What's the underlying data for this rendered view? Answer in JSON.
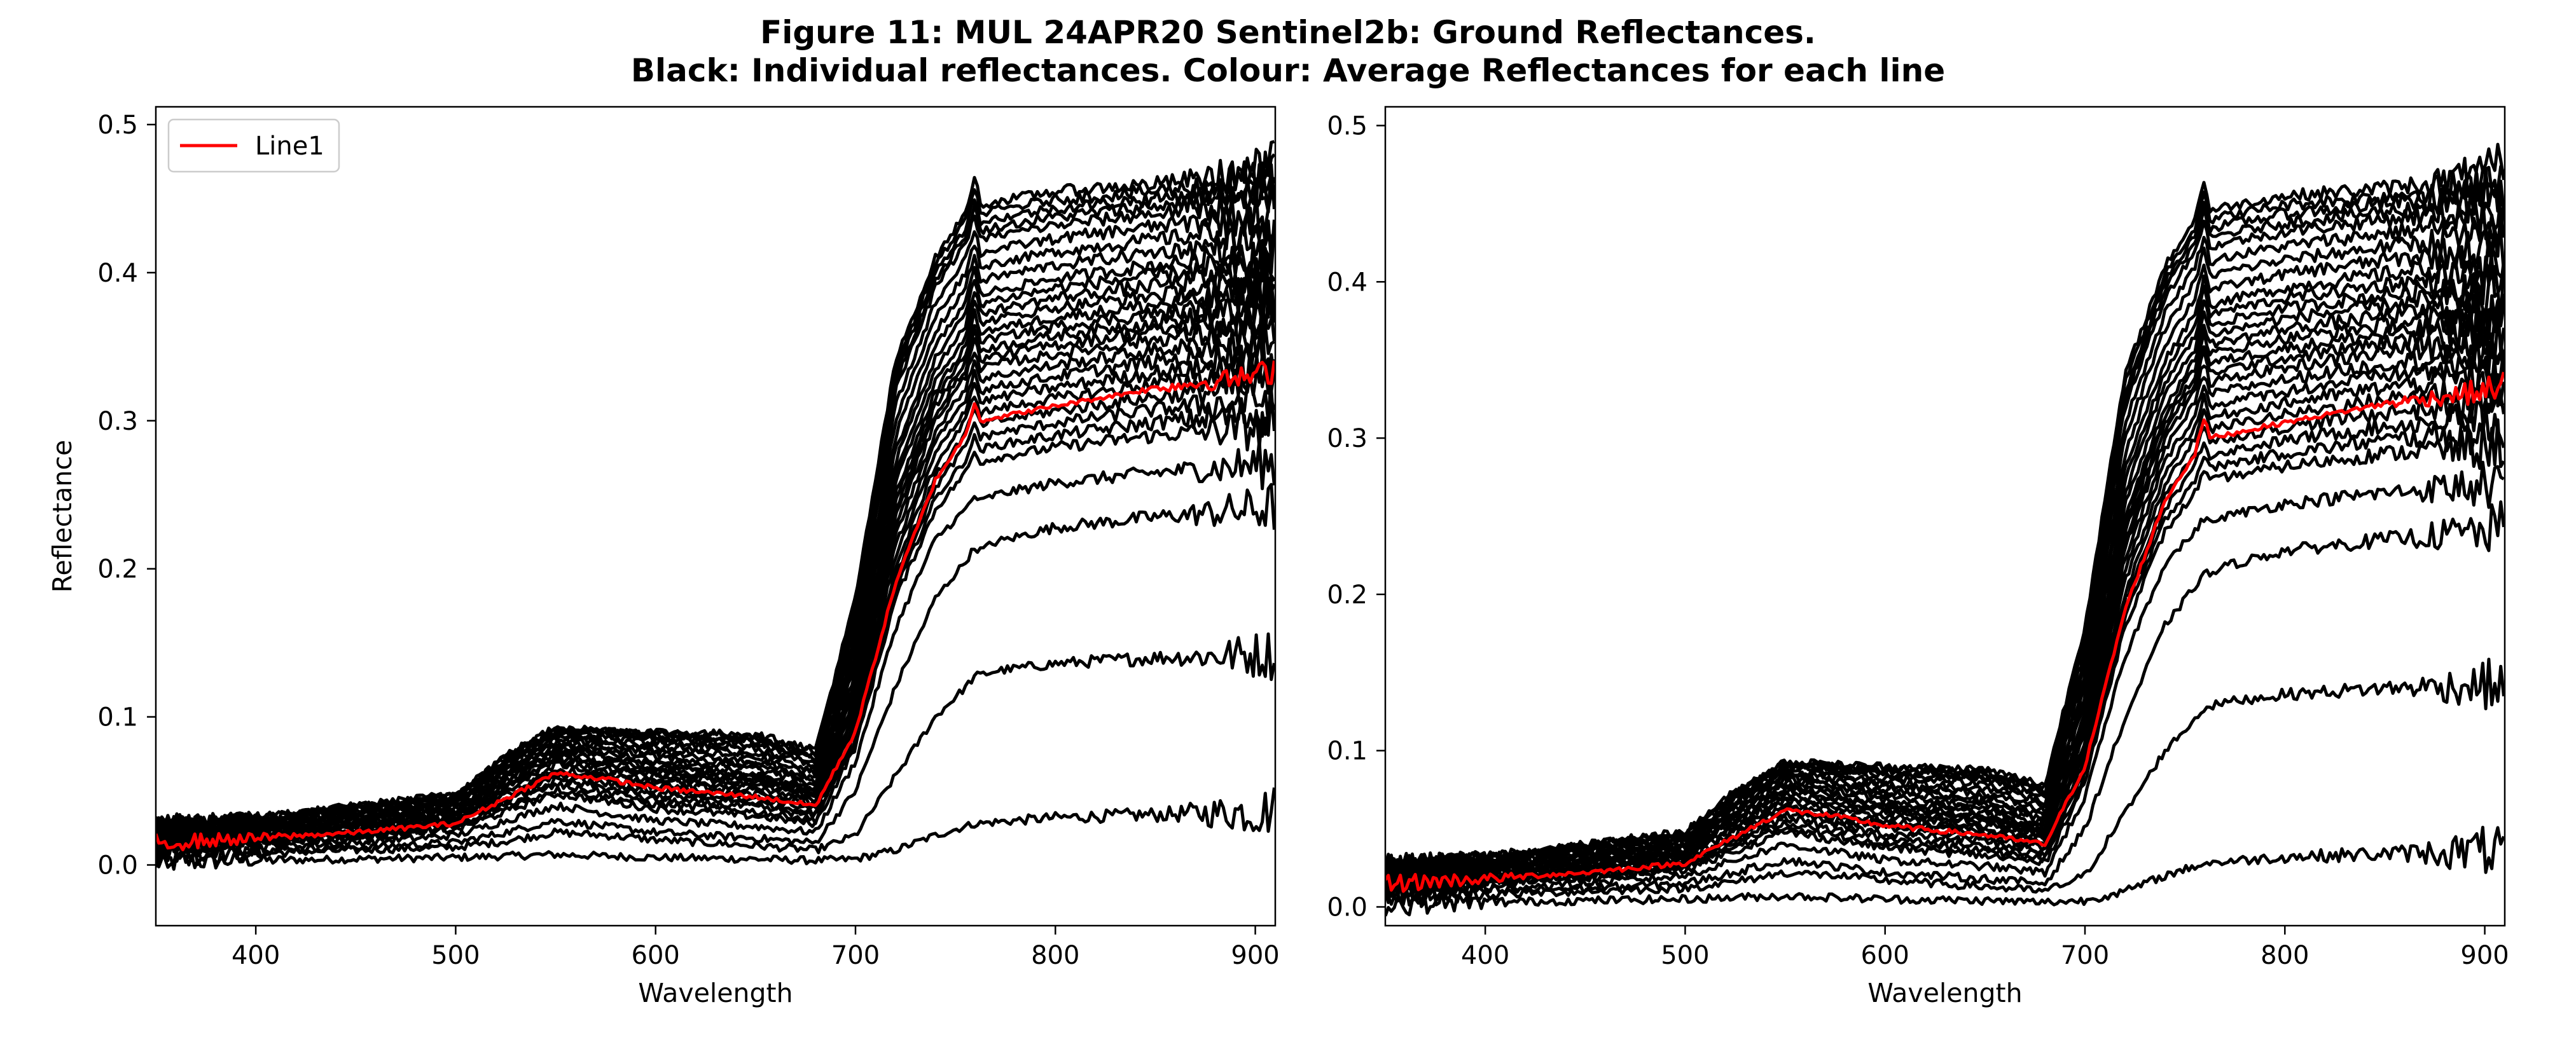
{
  "figure": {
    "title_line1": "Figure 11: MUL 24APR20  Sentinel2b: Ground Reflectances.",
    "title_line2": "Black: Individual reflectances. Colour: Average Reflectances for each line"
  },
  "colors": {
    "individual": "#000000",
    "average": "#ff0000",
    "axes": "#000000",
    "background": "#ffffff"
  },
  "chart_data": [
    {
      "type": "line",
      "title": "",
      "xlabel": "Wavelength",
      "ylabel": "Reflectance",
      "xlim": [
        350,
        910
      ],
      "ylim": [
        -0.041,
        0.512
      ],
      "xticks": [
        400,
        500,
        600,
        700,
        800,
        900
      ],
      "yticks": [
        0.0,
        0.1,
        0.2,
        0.3,
        0.4,
        0.5
      ],
      "grid": false,
      "legend": {
        "placement": "top-left",
        "entries": [
          "Line1"
        ]
      },
      "average_series": {
        "name": "Line1",
        "x": [
          350,
          400,
          450,
          500,
          525,
          550,
          575,
          600,
          650,
          680,
          700,
          720,
          740,
          755,
          760,
          762,
          770,
          800,
          850,
          900,
          910
        ],
        "y": [
          0.015,
          0.018,
          0.022,
          0.028,
          0.045,
          0.062,
          0.058,
          0.052,
          0.046,
          0.04,
          0.09,
          0.19,
          0.26,
          0.29,
          0.315,
          0.3,
          0.302,
          0.31,
          0.322,
          0.33,
          0.335
        ]
      },
      "individual_series_keypoints": {
        "x": [
          350,
          400,
          450,
          500,
          525,
          550,
          575,
          600,
          650,
          680,
          700,
          720,
          740,
          755,
          760,
          762,
          770,
          800,
          850,
          900,
          910
        ],
        "lines": [
          [
            0.002,
            0.003,
            0.004,
            0.005,
            0.006,
            0.007,
            0.006,
            0.005,
            0.004,
            0.003,
            0.004,
            0.01,
            0.02,
            0.026,
            0.028,
            0.028,
            0.029,
            0.032,
            0.034,
            0.036,
            0.037
          ],
          [
            0.006,
            0.008,
            0.01,
            0.012,
            0.016,
            0.022,
            0.02,
            0.017,
            0.013,
            0.01,
            0.02,
            0.06,
            0.1,
            0.12,
            0.128,
            0.128,
            0.131,
            0.136,
            0.14,
            0.142,
            0.143
          ],
          [
            0.008,
            0.01,
            0.012,
            0.015,
            0.022,
            0.03,
            0.026,
            0.022,
            0.018,
            0.015,
            0.05,
            0.12,
            0.18,
            0.205,
            0.215,
            0.212,
            0.218,
            0.228,
            0.235,
            0.24,
            0.242
          ],
          [
            0.01,
            0.012,
            0.015,
            0.02,
            0.03,
            0.04,
            0.035,
            0.03,
            0.026,
            0.022,
            0.07,
            0.16,
            0.22,
            0.24,
            0.25,
            0.245,
            0.25,
            0.258,
            0.265,
            0.27,
            0.272
          ],
          [
            0.012,
            0.015,
            0.018,
            0.024,
            0.036,
            0.048,
            0.043,
            0.038,
            0.033,
            0.028,
            0.08,
            0.18,
            0.24,
            0.265,
            0.28,
            0.272,
            0.275,
            0.282,
            0.29,
            0.295,
            0.298
          ],
          [
            0.015,
            0.018,
            0.022,
            0.028,
            0.045,
            0.06,
            0.055,
            0.05,
            0.045,
            0.038,
            0.095,
            0.2,
            0.27,
            0.3,
            0.32,
            0.305,
            0.308,
            0.315,
            0.325,
            0.332,
            0.335
          ],
          [
            0.018,
            0.021,
            0.026,
            0.032,
            0.052,
            0.07,
            0.065,
            0.06,
            0.055,
            0.046,
            0.11,
            0.23,
            0.3,
            0.33,
            0.35,
            0.335,
            0.338,
            0.345,
            0.355,
            0.362,
            0.365
          ],
          [
            0.02,
            0.024,
            0.03,
            0.036,
            0.058,
            0.078,
            0.072,
            0.066,
            0.06,
            0.05,
            0.12,
            0.25,
            0.32,
            0.35,
            0.375,
            0.36,
            0.362,
            0.37,
            0.378,
            0.385,
            0.388
          ],
          [
            0.022,
            0.027,
            0.034,
            0.04,
            0.064,
            0.085,
            0.08,
            0.075,
            0.07,
            0.058,
            0.14,
            0.28,
            0.35,
            0.38,
            0.405,
            0.385,
            0.388,
            0.396,
            0.405,
            0.412,
            0.415
          ],
          [
            0.025,
            0.03,
            0.038,
            0.045,
            0.07,
            0.09,
            0.088,
            0.085,
            0.082,
            0.07,
            0.16,
            0.32,
            0.39,
            0.42,
            0.44,
            0.422,
            0.425,
            0.432,
            0.44,
            0.447,
            0.45
          ],
          [
            0.026,
            0.032,
            0.04,
            0.048,
            0.074,
            0.093,
            0.091,
            0.09,
            0.088,
            0.078,
            0.18,
            0.34,
            0.41,
            0.44,
            0.468,
            0.445,
            0.448,
            0.455,
            0.46,
            0.468,
            0.472
          ]
        ]
      }
    },
    {
      "type": "line",
      "title": "",
      "xlabel": "Wavelength",
      "ylabel": "",
      "xlim": [
        350,
        910
      ],
      "ylim": [
        -0.012,
        0.512
      ],
      "xticks": [
        400,
        500,
        600,
        700,
        800,
        900
      ],
      "yticks": [
        0.0,
        0.1,
        0.2,
        0.3,
        0.4,
        0.5
      ],
      "grid": false,
      "legend": null,
      "average_series": {
        "name": "",
        "x": [
          350,
          400,
          450,
          500,
          525,
          550,
          575,
          600,
          650,
          680,
          700,
          720,
          740,
          755,
          760,
          762,
          770,
          800,
          850,
          900,
          910
        ],
        "y": [
          0.015,
          0.018,
          0.022,
          0.028,
          0.045,
          0.062,
          0.058,
          0.052,
          0.046,
          0.04,
          0.09,
          0.19,
          0.26,
          0.29,
          0.315,
          0.3,
          0.302,
          0.31,
          0.322,
          0.33,
          0.335
        ]
      },
      "individual_series_keypoints": {
        "x": [
          350,
          400,
          450,
          500,
          525,
          550,
          575,
          600,
          650,
          680,
          700,
          720,
          740,
          755,
          760,
          762,
          770,
          800,
          850,
          900,
          910
        ],
        "lines": [
          [
            0.002,
            0.003,
            0.004,
            0.005,
            0.006,
            0.007,
            0.006,
            0.005,
            0.004,
            0.003,
            0.004,
            0.01,
            0.02,
            0.026,
            0.028,
            0.028,
            0.029,
            0.032,
            0.034,
            0.036,
            0.037
          ],
          [
            0.006,
            0.008,
            0.01,
            0.012,
            0.016,
            0.022,
            0.02,
            0.017,
            0.013,
            0.01,
            0.02,
            0.06,
            0.1,
            0.12,
            0.128,
            0.128,
            0.131,
            0.136,
            0.14,
            0.142,
            0.143
          ],
          [
            0.008,
            0.01,
            0.012,
            0.015,
            0.022,
            0.03,
            0.026,
            0.022,
            0.018,
            0.015,
            0.05,
            0.12,
            0.18,
            0.205,
            0.215,
            0.212,
            0.218,
            0.228,
            0.235,
            0.24,
            0.242
          ],
          [
            0.01,
            0.012,
            0.015,
            0.02,
            0.03,
            0.04,
            0.035,
            0.03,
            0.026,
            0.022,
            0.07,
            0.16,
            0.22,
            0.24,
            0.25,
            0.245,
            0.25,
            0.258,
            0.265,
            0.27,
            0.272
          ],
          [
            0.012,
            0.015,
            0.018,
            0.024,
            0.036,
            0.048,
            0.043,
            0.038,
            0.033,
            0.028,
            0.08,
            0.18,
            0.24,
            0.265,
            0.28,
            0.272,
            0.275,
            0.282,
            0.29,
            0.295,
            0.298
          ],
          [
            0.015,
            0.018,
            0.022,
            0.028,
            0.045,
            0.06,
            0.055,
            0.05,
            0.045,
            0.038,
            0.095,
            0.2,
            0.27,
            0.3,
            0.32,
            0.305,
            0.308,
            0.315,
            0.325,
            0.332,
            0.335
          ],
          [
            0.018,
            0.021,
            0.026,
            0.032,
            0.052,
            0.07,
            0.065,
            0.06,
            0.055,
            0.046,
            0.11,
            0.23,
            0.3,
            0.33,
            0.35,
            0.335,
            0.338,
            0.345,
            0.355,
            0.362,
            0.365
          ],
          [
            0.02,
            0.024,
            0.03,
            0.036,
            0.058,
            0.078,
            0.072,
            0.066,
            0.06,
            0.05,
            0.12,
            0.25,
            0.32,
            0.35,
            0.375,
            0.36,
            0.362,
            0.37,
            0.378,
            0.385,
            0.388
          ],
          [
            0.022,
            0.027,
            0.034,
            0.04,
            0.064,
            0.085,
            0.08,
            0.075,
            0.07,
            0.058,
            0.14,
            0.28,
            0.35,
            0.38,
            0.405,
            0.385,
            0.388,
            0.396,
            0.405,
            0.412,
            0.415
          ],
          [
            0.025,
            0.03,
            0.038,
            0.045,
            0.07,
            0.09,
            0.088,
            0.085,
            0.082,
            0.07,
            0.16,
            0.32,
            0.39,
            0.42,
            0.44,
            0.422,
            0.425,
            0.432,
            0.44,
            0.447,
            0.45
          ],
          [
            0.026,
            0.032,
            0.04,
            0.048,
            0.074,
            0.093,
            0.091,
            0.09,
            0.088,
            0.078,
            0.18,
            0.34,
            0.41,
            0.44,
            0.468,
            0.445,
            0.448,
            0.455,
            0.46,
            0.468,
            0.472
          ]
        ]
      }
    }
  ]
}
